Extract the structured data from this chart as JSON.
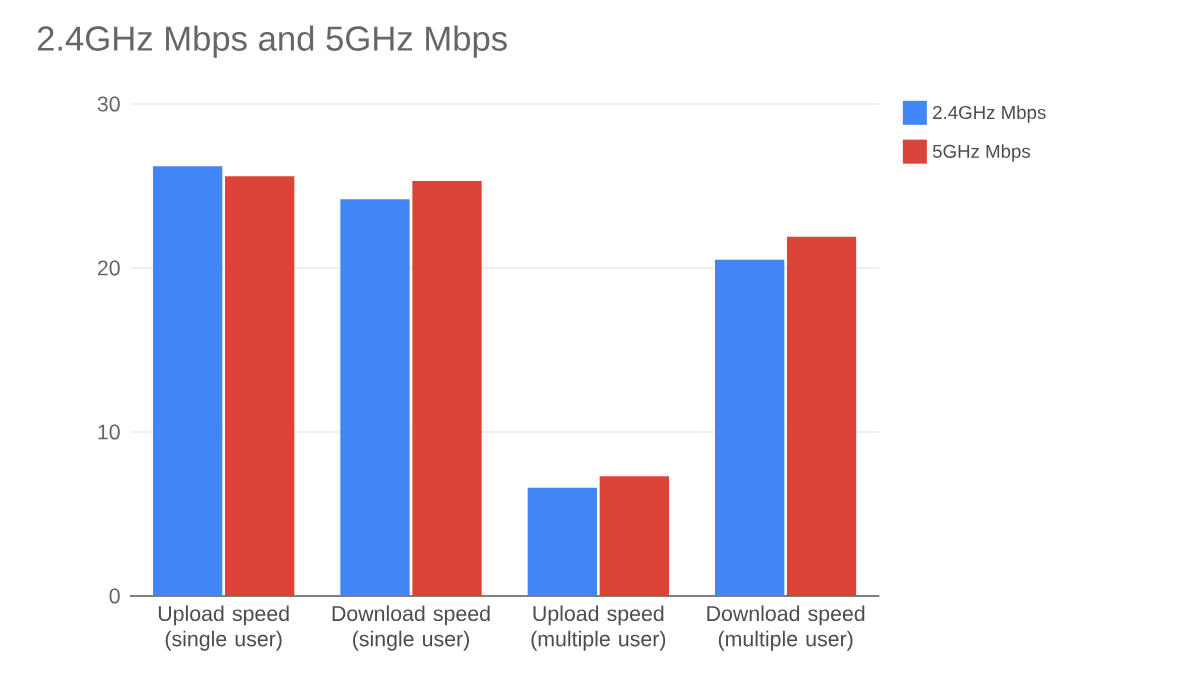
{
  "chart_data": {
    "type": "bar",
    "title": "2.4GHz Mbps and 5GHz Mbps",
    "categories": [
      "Upload speed (single user)",
      "Download speed (single user)",
      "Upload speed (multiple user)",
      "Download speed (multiple user)"
    ],
    "series": [
      {
        "name": "2.4GHz Mbps",
        "color": "#4285f4",
        "values": [
          26.2,
          24.2,
          6.6,
          20.5
        ]
      },
      {
        "name": "5GHz Mbps",
        "color": "#db4437",
        "values": [
          25.6,
          25.3,
          7.3,
          21.9
        ]
      }
    ],
    "ylim": [
      0,
      30
    ],
    "yticks": [
      0,
      10,
      20,
      30
    ],
    "grid": "y",
    "legend": "top right"
  }
}
